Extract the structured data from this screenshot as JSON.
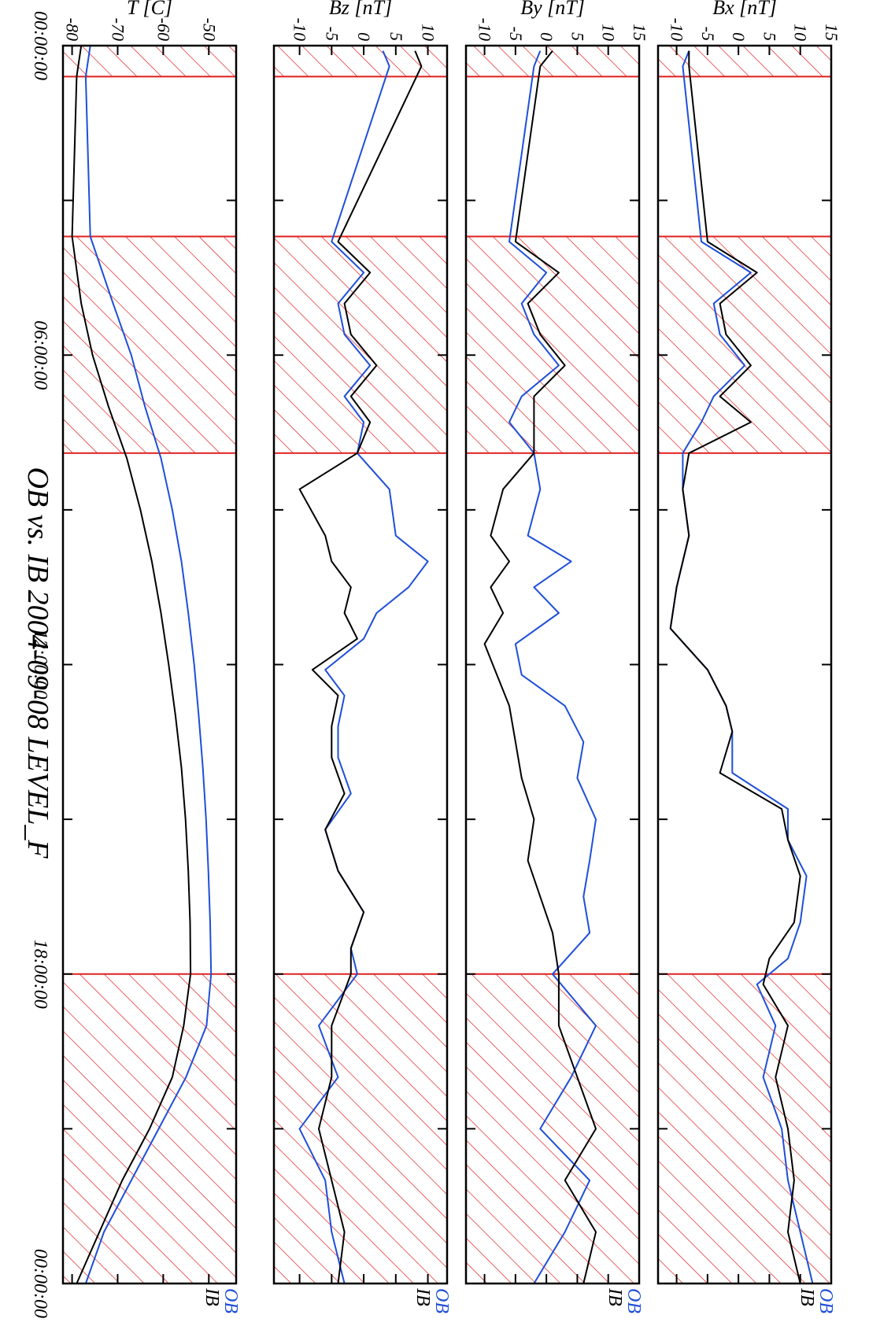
{
  "chart_data": {
    "type": "line",
    "title": "OB vs. IB  2004-09-08 LEVEL_F",
    "xlabel": "",
    "x_ticks": [
      "00:00:00",
      "06:00:00",
      "12:00:00",
      "18:00:00",
      "00:00:00"
    ],
    "x_range_hours": [
      0,
      24
    ],
    "hatched_intervals_hours": [
      [
        0,
        0.6
      ],
      [
        3.7,
        7.9
      ],
      [
        18.0,
        24
      ]
    ],
    "colors": {
      "OB": "#1f4fd8",
      "IB": "#000000",
      "hatch": "#e02020"
    },
    "panels": [
      {
        "ylabel": "Bx [nT]",
        "ylim": [
          -13,
          15
        ],
        "yticks": [
          15,
          10,
          5,
          0,
          -5,
          -10
        ],
        "ytick_labels": [
          "15",
          "10",
          "5",
          "0",
          "-5",
          "-10"
        ],
        "series": [
          {
            "name": "OB",
            "x": [
              0.1,
              0.4,
              3.8,
              4.4,
              5.0,
              5.6,
              6.2,
              6.8,
              7.3,
              7.9,
              8.6,
              9.5,
              10.5,
              11.3,
              12.1,
              12.8,
              13.3,
              14.1,
              14.8,
              15.4,
              16.1,
              17.0,
              17.7,
              18.2,
              19.0,
              20.0,
              21.0,
              22.0,
              23.0,
              24.0
            ],
            "y": [
              -8,
              -9,
              -6,
              2,
              -4,
              -3,
              1,
              -4,
              -6,
              -9,
              -9,
              -8,
              -10,
              -11,
              -5,
              -2,
              -1,
              -1,
              8,
              8,
              11,
              10,
              8,
              3,
              6,
              4,
              7,
              8,
              10,
              12
            ]
          },
          {
            "name": "IB",
            "x": [
              0.1,
              0.4,
              3.8,
              4.4,
              5.0,
              5.6,
              6.2,
              6.8,
              7.3,
              7.9,
              8.6,
              9.5,
              10.5,
              11.3,
              12.1,
              12.8,
              13.3,
              14.1,
              14.8,
              15.4,
              16.1,
              17.0,
              17.7,
              18.2,
              19.0,
              20.0,
              21.0,
              22.0,
              23.0,
              24.0
            ],
            "y": [
              -8,
              -8,
              -5,
              3,
              -3,
              -2,
              2,
              -3,
              2,
              -8,
              -9,
              -8,
              -10,
              -11,
              -5,
              -2,
              -1,
              -3,
              7,
              8,
              10,
              9,
              5,
              4,
              8,
              6,
              8,
              9,
              8,
              10
            ]
          }
        ],
        "legend": [
          "OB",
          "IB"
        ]
      },
      {
        "ylabel": "By [nT]",
        "ylim": [
          -13,
          15
        ],
        "yticks": [
          15,
          10,
          5,
          0,
          -5,
          -10
        ],
        "ytick_labels": [
          "15",
          "10",
          "5",
          "0",
          "-5",
          "-10"
        ],
        "series": [
          {
            "name": "OB",
            "x": [
              0.1,
              0.4,
              3.8,
              4.4,
              5.0,
              5.6,
              6.2,
              6.8,
              7.3,
              7.9,
              8.6,
              9.5,
              10.0,
              10.5,
              11.0,
              11.6,
              12.2,
              12.8,
              13.5,
              14.2,
              15.0,
              15.8,
              16.5,
              17.2,
              18.0,
              19.0,
              20.0,
              21.0,
              22.0,
              23.0,
              24.0
            ],
            "y": [
              -1,
              -2,
              -6,
              0,
              -4,
              -2,
              2,
              -4,
              -6,
              -2,
              -1,
              -3,
              4,
              -2,
              2,
              -5,
              -4,
              3,
              6,
              5,
              8,
              7,
              6,
              7,
              1,
              8,
              4,
              -1,
              7,
              3,
              -2
            ]
          },
          {
            "name": "IB",
            "x": [
              0.1,
              0.4,
              3.8,
              4.4,
              5.0,
              5.6,
              6.2,
              6.8,
              7.3,
              7.9,
              8.6,
              9.5,
              10.0,
              10.5,
              11.0,
              11.6,
              12.2,
              12.8,
              13.5,
              14.2,
              15.0,
              15.8,
              16.5,
              17.2,
              18.0,
              19.0,
              20.0,
              21.0,
              22.0,
              23.0,
              24.0
            ],
            "y": [
              1,
              -1,
              -5,
              2,
              -3,
              -1,
              3,
              -2,
              -2,
              -2,
              -7,
              -9,
              -6,
              -9,
              -7,
              -10,
              -8,
              -6,
              -5,
              -4,
              -2,
              -3,
              -1,
              1,
              2,
              2,
              5,
              8,
              3,
              8,
              6
            ]
          }
        ],
        "legend": [
          "OB",
          "IB"
        ]
      },
      {
        "ylabel": "Bz [nT]",
        "ylim": [
          -14,
          13
        ],
        "yticks": [
          10,
          5,
          0,
          -5,
          -10
        ],
        "ytick_labels": [
          "10",
          "5",
          "0",
          "-5",
          "-10"
        ],
        "series": [
          {
            "name": "OB",
            "x": [
              0.1,
              0.4,
              3.8,
              4.4,
              5.0,
              5.6,
              6.2,
              6.8,
              7.3,
              7.9,
              8.6,
              9.5,
              10.0,
              10.5,
              11.0,
              11.5,
              12.1,
              12.6,
              13.2,
              13.8,
              14.5,
              15.2,
              16.0,
              16.8,
              17.5,
              18.0,
              19.0,
              20.0,
              21.0,
              22.0,
              23.0,
              24.0
            ],
            "y": [
              3,
              4,
              -5,
              0,
              -4,
              -3,
              1,
              -3,
              0,
              -1,
              4,
              5,
              10,
              7,
              2,
              0,
              -6,
              -3,
              -4,
              -4,
              -2,
              -6,
              -4,
              0,
              -2,
              -1,
              -7,
              -4,
              -10,
              -6,
              -5,
              -3
            ]
          },
          {
            "name": "IB",
            "x": [
              0.1,
              0.4,
              3.8,
              4.4,
              5.0,
              5.6,
              6.2,
              6.8,
              7.3,
              7.9,
              8.6,
              9.5,
              10.0,
              10.5,
              11.0,
              11.5,
              12.1,
              12.6,
              13.2,
              13.8,
              14.5,
              15.2,
              16.0,
              16.8,
              17.5,
              18.0,
              19.0,
              20.0,
              21.0,
              22.0,
              23.0,
              24.0
            ],
            "y": [
              8,
              9,
              -4,
              1,
              -3,
              -2,
              2,
              -2,
              1,
              -1,
              -10,
              -6,
              -5,
              -2,
              -3,
              -1,
              -8,
              -4,
              -5,
              -5,
              -3,
              -6,
              -4,
              0,
              -2,
              -2,
              -5,
              -5,
              -7,
              -5,
              -3,
              -4
            ]
          }
        ],
        "legend": [
          "OB",
          "IB"
        ]
      },
      {
        "ylabel": "T [C]",
        "ylim": [
          -82,
          -44
        ],
        "yticks": [
          -50,
          -60,
          -70,
          -80
        ],
        "ytick_labels": [
          "-50",
          "-60",
          "-70",
          "-80"
        ],
        "series": [
          {
            "name": "OB",
            "x": [
              0,
              0.6,
              3.7,
              5,
              6,
              7,
              8,
              9,
              10,
              11,
              12,
              13,
              14,
              15,
              16,
              17,
              18,
              19,
              20,
              21,
              22,
              23,
              24
            ],
            "y": [
              -76,
              -77,
              -76,
              -71,
              -67,
              -64,
              -60.5,
              -58,
              -56,
              -54.5,
              -53.2,
              -52.2,
              -51.3,
              -50.6,
              -50.1,
              -49.7,
              -49.5,
              -50.5,
              -55,
              -61,
              -67,
              -73,
              -77
            ]
          },
          {
            "name": "IB",
            "x": [
              0,
              0.6,
              3.7,
              5,
              6,
              7,
              8,
              9,
              10,
              11,
              12,
              13,
              14,
              15,
              16,
              17,
              18,
              19,
              20,
              21,
              22,
              23,
              24
            ],
            "y": [
              -78,
              -79,
              -80,
              -78,
              -75.5,
              -72,
              -68,
              -65,
              -62.5,
              -60.5,
              -58.8,
              -57.3,
              -56,
              -55.1,
              -54.5,
              -54.1,
              -54,
              -55.5,
              -58,
              -63,
              -69,
              -74,
              -79
            ]
          }
        ],
        "legend": [
          "OB",
          "IB"
        ]
      }
    ]
  }
}
